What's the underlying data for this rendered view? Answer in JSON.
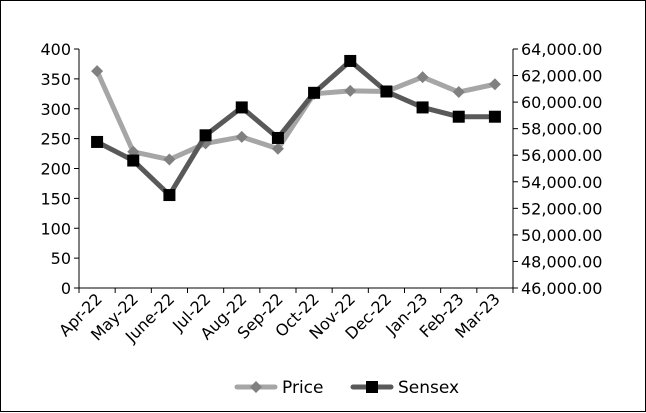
{
  "chart_data": {
    "type": "line",
    "title": "",
    "xlabel": "",
    "ylabel": "",
    "categories": [
      "Apr-22",
      "May-22",
      "June-22",
      "Jul-22",
      "Aug-22",
      "Sep-22",
      "Oct-22",
      "Nov-22",
      "Dec-22",
      "Jan-23",
      "Feb-23",
      "Mar-23"
    ],
    "y_left": {
      "min": 0,
      "max": 400,
      "ticks": [
        0,
        50,
        100,
        150,
        200,
        250,
        300,
        350,
        400
      ],
      "tick_labels": [
        "0",
        "50",
        "100",
        "150",
        "200",
        "250",
        "300",
        "350",
        "400"
      ]
    },
    "y_right": {
      "min": 46000,
      "max": 64000,
      "ticks": [
        46000,
        48000,
        50000,
        52000,
        54000,
        56000,
        58000,
        60000,
        62000,
        64000
      ],
      "tick_labels": [
        "46,000.00",
        "48,000.00",
        "50,000.00",
        "52,000.00",
        "54,000.00",
        "56,000.00",
        "58,000.00",
        "60,000.00",
        "62,000.00",
        "64,000.00"
      ]
    },
    "grid": false,
    "legend_position": "bottom",
    "series": [
      {
        "name": "Price",
        "axis": "left",
        "color": "#a6a6a6",
        "marker": "diamond",
        "values": [
          363,
          228,
          215,
          242,
          253,
          233,
          325,
          330,
          329,
          353,
          328,
          341
        ]
      },
      {
        "name": "Sensex",
        "axis": "right",
        "color": "#595959",
        "marker": "square",
        "values": [
          57000,
          55600,
          53000,
          57500,
          59600,
          57300,
          60700,
          63100,
          60800,
          59600,
          58900,
          58900
        ]
      }
    ]
  }
}
